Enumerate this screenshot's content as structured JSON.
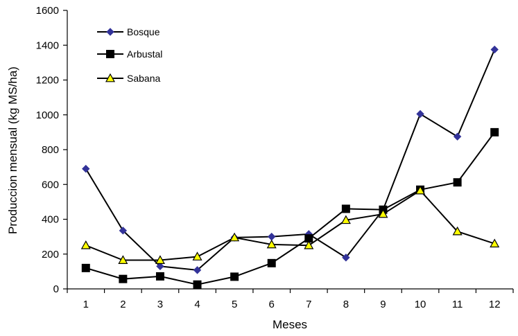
{
  "chart_data": {
    "type": "line",
    "title": "",
    "xlabel": "Meses",
    "ylabel": "Produccion mensual (kg MS/ha)",
    "x": [
      1,
      2,
      3,
      4,
      5,
      6,
      7,
      8,
      9,
      10,
      11,
      12
    ],
    "ylim": [
      0,
      1600
    ],
    "yticks": [
      0,
      200,
      400,
      600,
      800,
      1000,
      1200,
      1400,
      1600
    ],
    "grid": false,
    "legend_position": "top-left",
    "series": [
      {
        "name": "Bosque",
        "marker": "diamond",
        "color": "#333399",
        "values": [
          690,
          335,
          130,
          108,
          295,
          300,
          315,
          180,
          455,
          1005,
          875,
          1375
        ]
      },
      {
        "name": "Arbustal",
        "marker": "square",
        "color": "#000000",
        "values": [
          120,
          57,
          72,
          25,
          70,
          148,
          290,
          460,
          455,
          570,
          612,
          900
        ]
      },
      {
        "name": "Sabana",
        "marker": "triangle",
        "color": "#ffff00",
        "values": [
          250,
          165,
          165,
          185,
          295,
          255,
          250,
          395,
          430,
          565,
          330,
          260
        ]
      }
    ]
  }
}
